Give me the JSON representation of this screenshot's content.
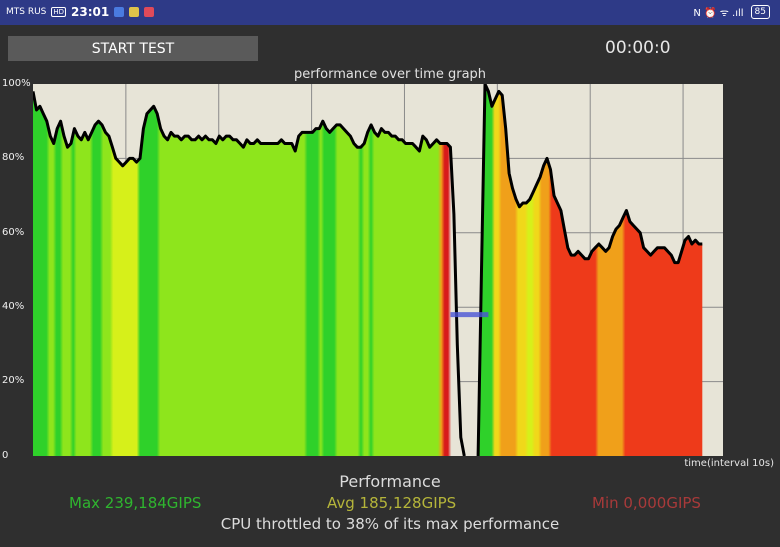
{
  "statusbar": {
    "carrier": "MTS RUS",
    "network_badge": "HD",
    "time": "23:01",
    "right_icons_text": "N ⏰ ᯤ .ıll",
    "battery": "85"
  },
  "toolbar": {
    "start_label": "START TEST",
    "timer": "00:00:0"
  },
  "graph": {
    "title": "performance over time graph",
    "x_axis_label": "time(interval 10s)"
  },
  "stats": {
    "title": "Performance",
    "max": "Max 239,184GIPS",
    "avg": "Avg 185,128GIPS",
    "min": "Min 0,000GIPS",
    "throttle": "CPU throttled to 38% of its max performance"
  },
  "colors": {
    "max": "#2fb52f",
    "avg": "#b5b53a",
    "min": "#a83a3a",
    "plot_bg": "#e7e4d7",
    "marker": "#4a55d6"
  },
  "chart_data": {
    "type": "area",
    "title": "performance over time graph",
    "xlabel": "time(interval 10s)",
    "ylabel": "",
    "yticks": [
      "0",
      "20%",
      "40%",
      "60%",
      "80%",
      "100%"
    ],
    "ylim": [
      0,
      100
    ],
    "xlim": [
      0,
      100
    ],
    "grid": true,
    "series": [
      {
        "values": [
          [
            0,
            98
          ],
          [
            0.5,
            93
          ],
          [
            1,
            94
          ],
          [
            1.5,
            92
          ],
          [
            2,
            90
          ],
          [
            2.5,
            86
          ],
          [
            3,
            84
          ],
          [
            3.5,
            88
          ],
          [
            4,
            90
          ],
          [
            4.5,
            86
          ],
          [
            5,
            83
          ],
          [
            5.5,
            84
          ],
          [
            6,
            88
          ],
          [
            6.5,
            86
          ],
          [
            7,
            85
          ],
          [
            7.5,
            87
          ],
          [
            8,
            85
          ],
          [
            8.5,
            87
          ],
          [
            9,
            89
          ],
          [
            9.5,
            90
          ],
          [
            10,
            89
          ],
          [
            10.5,
            87
          ],
          [
            11,
            86
          ],
          [
            11.5,
            83
          ],
          [
            12,
            80
          ],
          [
            12.5,
            79
          ],
          [
            13,
            78
          ],
          [
            13.5,
            79
          ],
          [
            14,
            80
          ],
          [
            14.5,
            80
          ],
          [
            15,
            79
          ],
          [
            15.5,
            80
          ],
          [
            16,
            88
          ],
          [
            16.5,
            92
          ],
          [
            17,
            93
          ],
          [
            17.5,
            94
          ],
          [
            18,
            92
          ],
          [
            18.5,
            88
          ],
          [
            19,
            86
          ],
          [
            19.5,
            85
          ],
          [
            20,
            87
          ],
          [
            20.5,
            86
          ],
          [
            21,
            86
          ],
          [
            21.5,
            85
          ],
          [
            22,
            86
          ],
          [
            22.5,
            86
          ],
          [
            23,
            85
          ],
          [
            23.5,
            85
          ],
          [
            24,
            86
          ],
          [
            24.5,
            85
          ],
          [
            25,
            86
          ],
          [
            25.5,
            85
          ],
          [
            26,
            85
          ],
          [
            26.5,
            84
          ],
          [
            27,
            86
          ],
          [
            27.5,
            85
          ],
          [
            28,
            86
          ],
          [
            28.5,
            86
          ],
          [
            29,
            85
          ],
          [
            29.5,
            85
          ],
          [
            30,
            84
          ],
          [
            30.5,
            83
          ],
          [
            31,
            85
          ],
          [
            31.5,
            84
          ],
          [
            32,
            84
          ],
          [
            32.5,
            85
          ],
          [
            33,
            84
          ],
          [
            33.5,
            84
          ],
          [
            34,
            84
          ],
          [
            34.5,
            84
          ],
          [
            35,
            84
          ],
          [
            35.5,
            84
          ],
          [
            36,
            85
          ],
          [
            36.5,
            84
          ],
          [
            37,
            84
          ],
          [
            37.5,
            84
          ],
          [
            38,
            82
          ],
          [
            38.5,
            86
          ],
          [
            39,
            87
          ],
          [
            39.5,
            87
          ],
          [
            40,
            87
          ],
          [
            40.5,
            87
          ],
          [
            41,
            88
          ],
          [
            41.5,
            88
          ],
          [
            42,
            90
          ],
          [
            42.5,
            88
          ],
          [
            43,
            87
          ],
          [
            43.5,
            88
          ],
          [
            44,
            89
          ],
          [
            44.5,
            89
          ],
          [
            45,
            88
          ],
          [
            45.5,
            87
          ],
          [
            46,
            86
          ],
          [
            46.5,
            84
          ],
          [
            47,
            83
          ],
          [
            47.5,
            83
          ],
          [
            48,
            84
          ],
          [
            48.5,
            87
          ],
          [
            49,
            89
          ],
          [
            49.5,
            87
          ],
          [
            50,
            86
          ],
          [
            50.5,
            88
          ],
          [
            51,
            87
          ],
          [
            51.5,
            87
          ],
          [
            52,
            86
          ],
          [
            52.5,
            86
          ],
          [
            53,
            85
          ],
          [
            53.5,
            85
          ],
          [
            54,
            84
          ],
          [
            54.5,
            84
          ],
          [
            55,
            84
          ],
          [
            55.5,
            83
          ],
          [
            56,
            82
          ],
          [
            56.5,
            86
          ],
          [
            57,
            85
          ],
          [
            57.5,
            83
          ],
          [
            58,
            84
          ],
          [
            58.5,
            85
          ],
          [
            59,
            84
          ],
          [
            59.5,
            84
          ],
          [
            60,
            84
          ],
          [
            60.5,
            83
          ],
          [
            61,
            65
          ],
          [
            61.5,
            30
          ],
          [
            62,
            5
          ],
          [
            62.5,
            0
          ],
          [
            64.5,
            0
          ],
          [
            65,
            50
          ],
          [
            65.5,
            100
          ],
          [
            66,
            98
          ],
          [
            66.5,
            94
          ],
          [
            67,
            96
          ],
          [
            67.5,
            98
          ],
          [
            68,
            97
          ],
          [
            68.5,
            88
          ],
          [
            69,
            76
          ],
          [
            69.5,
            72
          ],
          [
            70,
            69
          ],
          [
            70.5,
            67
          ],
          [
            71,
            68
          ],
          [
            71.5,
            68
          ],
          [
            72,
            69
          ],
          [
            72.5,
            71
          ],
          [
            73,
            73
          ],
          [
            73.5,
            75
          ],
          [
            74,
            78
          ],
          [
            74.5,
            80
          ],
          [
            75,
            77
          ],
          [
            75.5,
            70
          ],
          [
            76,
            68
          ],
          [
            76.5,
            66
          ],
          [
            77,
            61
          ],
          [
            77.5,
            56
          ],
          [
            78,
            54
          ],
          [
            78.5,
            54
          ],
          [
            79,
            55
          ],
          [
            79.5,
            54
          ],
          [
            80,
            53
          ],
          [
            80.5,
            53
          ],
          [
            81,
            55
          ],
          [
            81.5,
            56
          ],
          [
            82,
            57
          ],
          [
            82.5,
            56
          ],
          [
            83,
            55
          ],
          [
            83.5,
            56
          ],
          [
            84,
            59
          ],
          [
            84.5,
            61
          ],
          [
            85,
            62
          ],
          [
            85.5,
            64
          ],
          [
            86,
            66
          ],
          [
            86.5,
            63
          ],
          [
            87,
            62
          ],
          [
            87.5,
            61
          ],
          [
            88,
            60
          ],
          [
            88.5,
            56
          ],
          [
            89,
            55
          ],
          [
            89.5,
            54
          ],
          [
            90,
            55
          ],
          [
            90.5,
            56
          ],
          [
            91,
            56
          ],
          [
            91.5,
            56
          ],
          [
            92,
            55
          ],
          [
            92.5,
            54
          ],
          [
            93,
            52
          ],
          [
            93.5,
            52
          ],
          [
            94,
            55
          ],
          [
            94.5,
            58
          ],
          [
            95,
            59
          ],
          [
            95.5,
            57
          ],
          [
            96,
            58
          ],
          [
            96.5,
            57
          ],
          [
            97,
            57
          ]
        ],
        "marker": [
          [
            60.5,
            38
          ],
          [
            66,
            38
          ]
        ]
      }
    ]
  }
}
